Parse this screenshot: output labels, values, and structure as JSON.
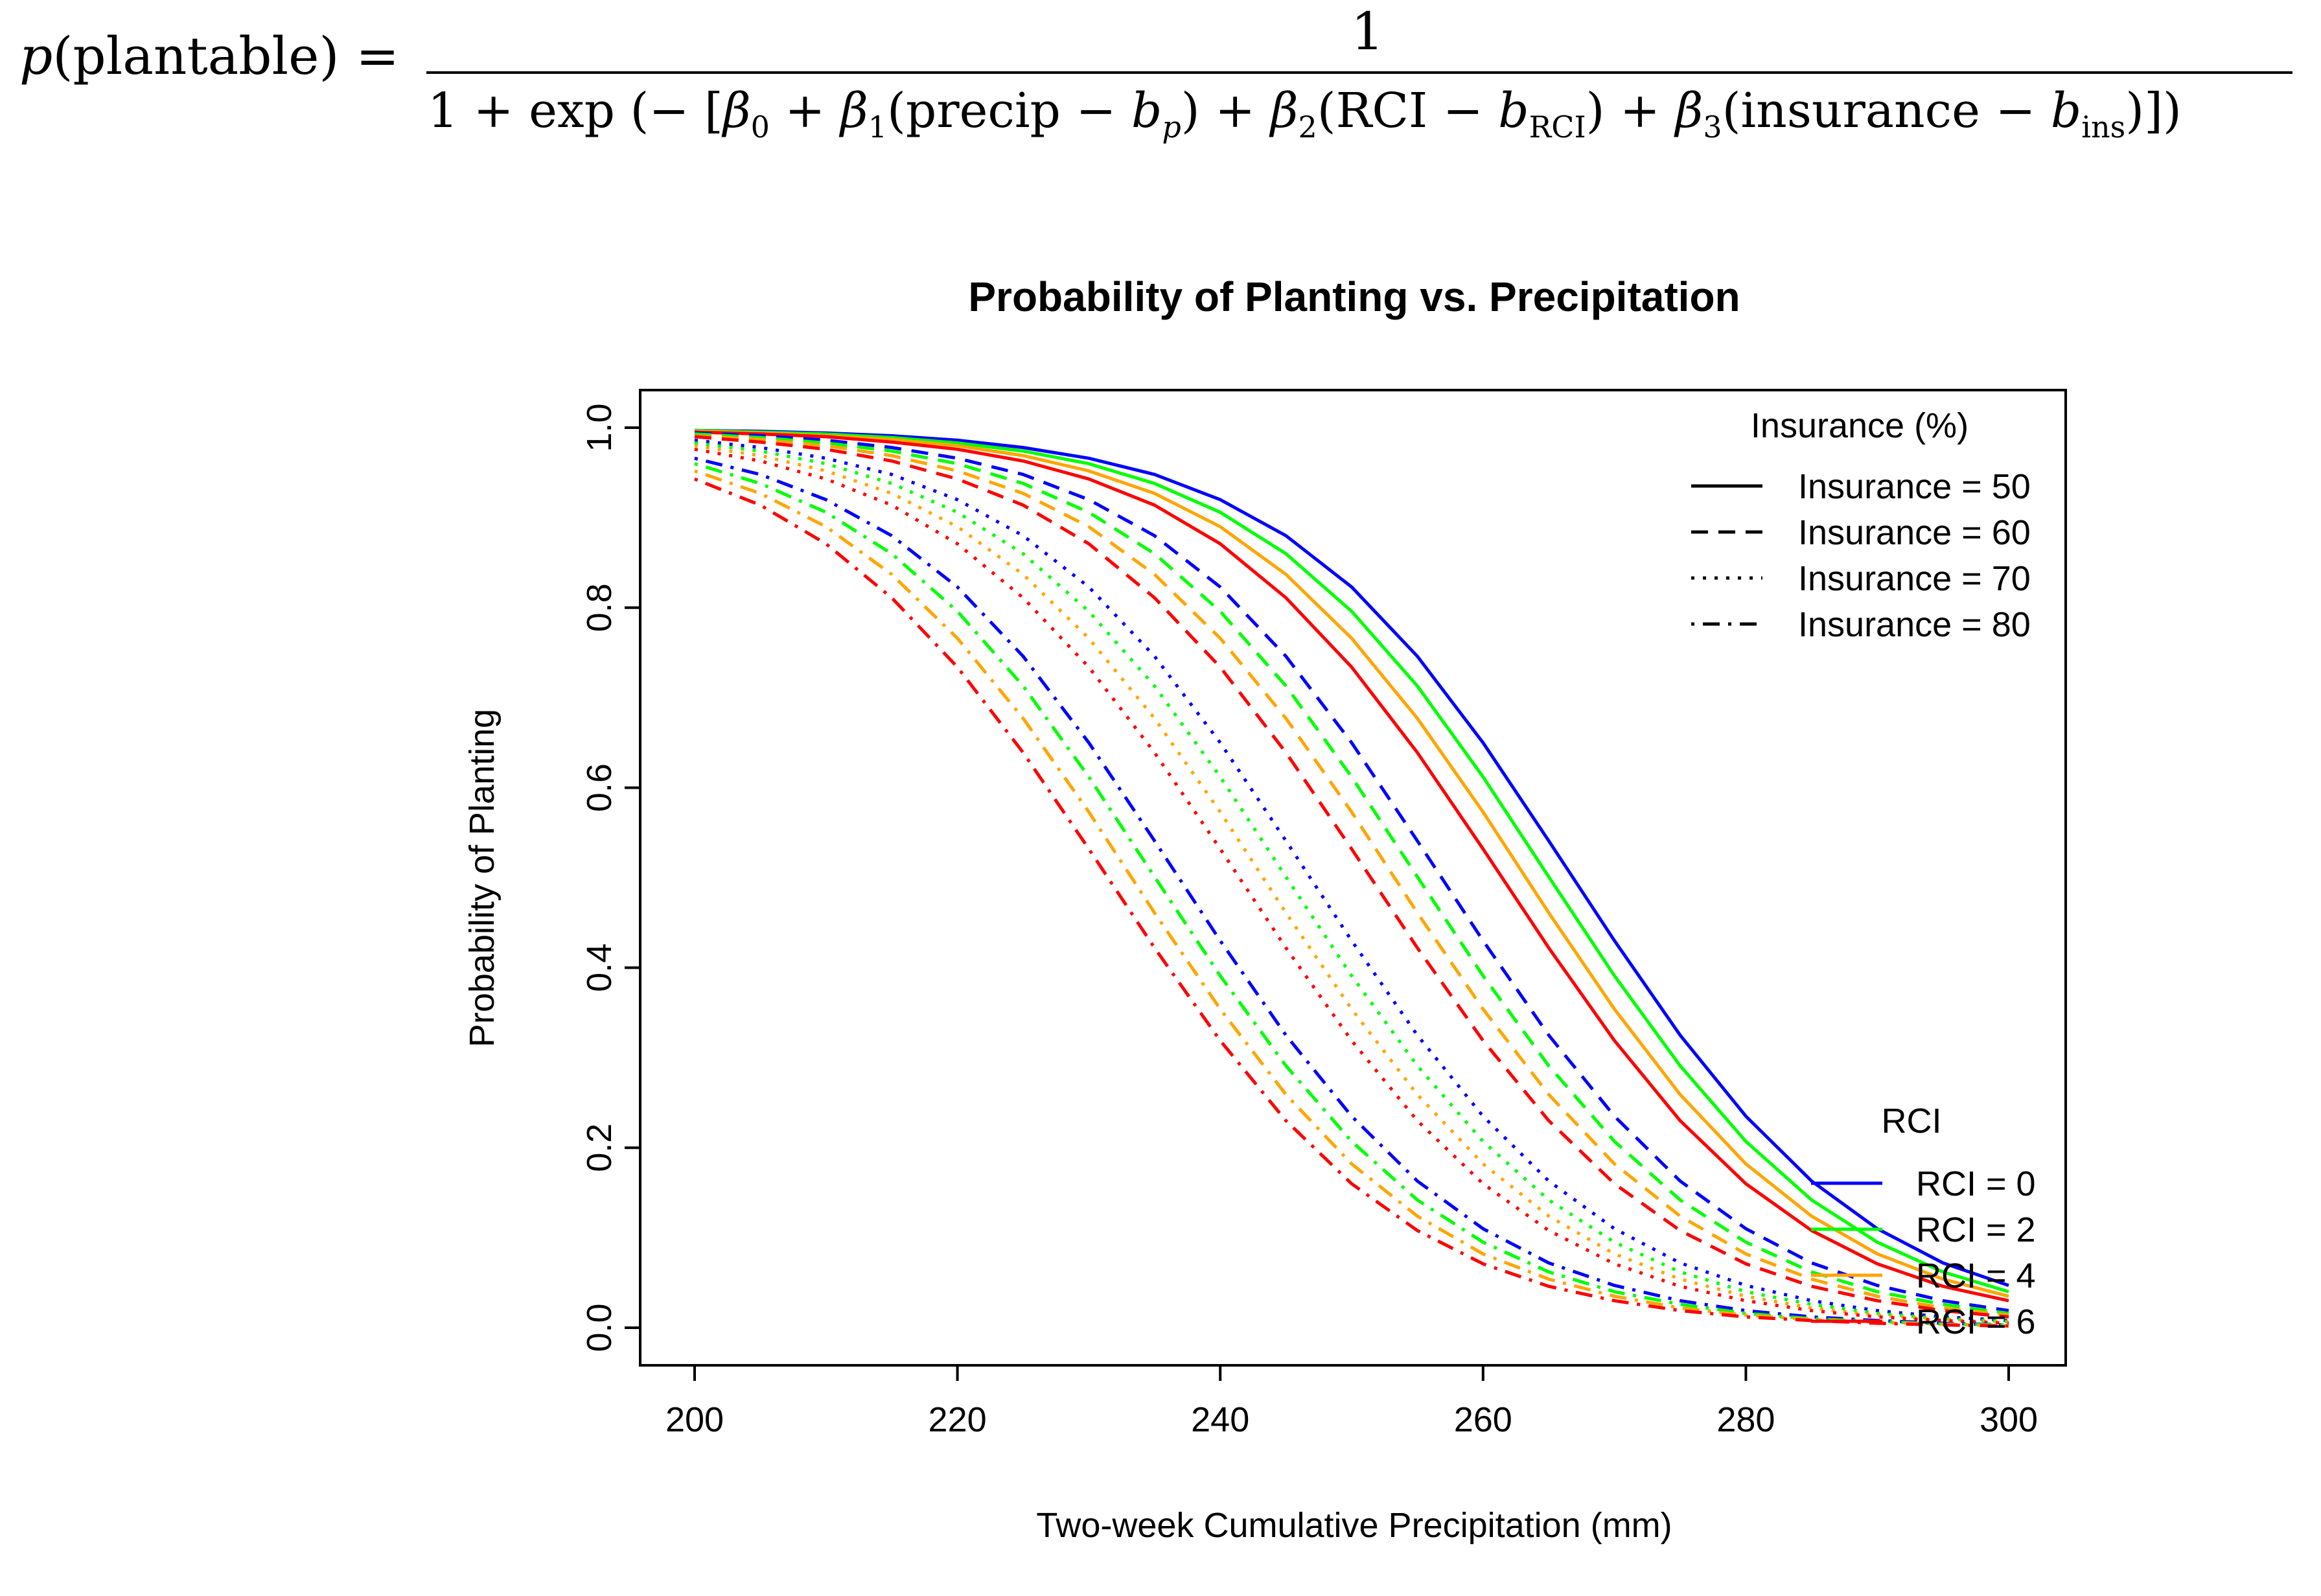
{
  "formula": {
    "lhs": "p(plantable) =",
    "numerator": "1",
    "denominator": "1 + exp (− [β0 + β1(precip − bp) + β2(RCI − bRCI) + β3(insurance − bins)])"
  },
  "chart_data": {
    "type": "line",
    "title": "Probability of Planting vs. Precipitation",
    "xlabel": "Two-week Cumulative Precipitation (mm)",
    "ylabel": "Probability of Planting",
    "xlim": [
      200,
      300
    ],
    "ylim": [
      0.0,
      1.0
    ],
    "x_ticks": [
      "200",
      "220",
      "240",
      "260",
      "280",
      "300"
    ],
    "y_ticks": [
      "0.0",
      "0.2",
      "0.4",
      "0.6",
      "0.8",
      "1.0"
    ],
    "grid": false,
    "x": [
      200,
      205,
      210,
      215,
      220,
      225,
      230,
      235,
      240,
      245,
      250,
      255,
      260,
      265,
      270,
      275,
      280,
      285,
      290,
      295,
      300
    ],
    "legend_insurance": {
      "title": "Insurance (%)",
      "position": "top-right",
      "entries": [
        {
          "label": "Insurance = 50",
          "linestyle": "solid"
        },
        {
          "label": "Insurance = 60",
          "linestyle": "dashed"
        },
        {
          "label": "Insurance = 70",
          "linestyle": "dotted"
        },
        {
          "label": "Insurance = 80",
          "linestyle": "dotdash"
        }
      ]
    },
    "legend_rci": {
      "title": "RCI",
      "position": "bottom-right",
      "entries": [
        {
          "label": "RCI = 0",
          "color": "#0000FF"
        },
        {
          "label": "RCI = 2",
          "color": "#00FF00"
        },
        {
          "label": "RCI = 4",
          "color": "#FFA500"
        },
        {
          "label": "RCI = 6",
          "color": "#FF0000"
        }
      ]
    },
    "series": [
      {
        "insurance": 50,
        "rci": 0,
        "color": "#0000FF",
        "linestyle": "solid",
        "values": [
          0.997,
          0.996,
          0.994,
          0.991,
          0.986,
          0.978,
          0.966,
          0.948,
          0.92,
          0.88,
          0.823,
          0.746,
          0.65,
          0.541,
          0.43,
          0.325,
          0.235,
          0.163,
          0.11,
          0.072,
          0.047
        ]
      },
      {
        "insurance": 50,
        "rci": 2,
        "color": "#00FF00",
        "linestyle": "solid",
        "values": [
          0.997,
          0.995,
          0.993,
          0.989,
          0.983,
          0.974,
          0.96,
          0.938,
          0.906,
          0.86,
          0.796,
          0.713,
          0.612,
          0.501,
          0.391,
          0.291,
          0.207,
          0.142,
          0.095,
          0.062,
          0.04
        ]
      },
      {
        "insurance": 50,
        "rci": 4,
        "color": "#FFA500",
        "linestyle": "solid",
        "values": [
          0.996,
          0.994,
          0.991,
          0.987,
          0.98,
          0.969,
          0.952,
          0.927,
          0.89,
          0.837,
          0.766,
          0.677,
          0.573,
          0.461,
          0.354,
          0.259,
          0.182,
          0.124,
          0.082,
          0.054,
          0.035
        ]
      },
      {
        "insurance": 50,
        "rci": 6,
        "color": "#FF0000",
        "linestyle": "solid",
        "values": [
          0.995,
          0.993,
          0.99,
          0.984,
          0.976,
          0.963,
          0.943,
          0.914,
          0.871,
          0.811,
          0.734,
          0.639,
          0.532,
          0.422,
          0.319,
          0.23,
          0.16,
          0.108,
          0.071,
          0.046,
          0.03
        ]
      },
      {
        "insurance": 60,
        "rci": 0,
        "color": "#0000FF",
        "linestyle": "dashed",
        "values": [
          0.994,
          0.991,
          0.986,
          0.978,
          0.966,
          0.948,
          0.92,
          0.88,
          0.823,
          0.746,
          0.65,
          0.541,
          0.43,
          0.325,
          0.235,
          0.163,
          0.11,
          0.072,
          0.047,
          0.03,
          0.019
        ]
      },
      {
        "insurance": 60,
        "rci": 2,
        "color": "#00FF00",
        "linestyle": "dashed",
        "values": [
          0.993,
          0.989,
          0.983,
          0.974,
          0.96,
          0.938,
          0.906,
          0.86,
          0.796,
          0.713,
          0.612,
          0.501,
          0.391,
          0.291,
          0.207,
          0.142,
          0.095,
          0.062,
          0.04,
          0.026,
          0.016
        ]
      },
      {
        "insurance": 60,
        "rci": 4,
        "color": "#FFA500",
        "linestyle": "dashed",
        "values": [
          0.991,
          0.987,
          0.98,
          0.969,
          0.952,
          0.927,
          0.89,
          0.837,
          0.766,
          0.677,
          0.573,
          0.461,
          0.354,
          0.259,
          0.182,
          0.124,
          0.082,
          0.054,
          0.035,
          0.022,
          0.014
        ]
      },
      {
        "insurance": 60,
        "rci": 6,
        "color": "#FF0000",
        "linestyle": "dashed",
        "values": [
          0.99,
          0.984,
          0.976,
          0.963,
          0.943,
          0.914,
          0.871,
          0.811,
          0.734,
          0.639,
          0.532,
          0.422,
          0.319,
          0.23,
          0.16,
          0.108,
          0.071,
          0.046,
          0.03,
          0.019,
          0.012
        ]
      },
      {
        "insurance": 70,
        "rci": 0,
        "color": "#0000FF",
        "linestyle": "dotted",
        "values": [
          0.986,
          0.978,
          0.966,
          0.948,
          0.92,
          0.88,
          0.823,
          0.746,
          0.65,
          0.541,
          0.43,
          0.325,
          0.235,
          0.163,
          0.11,
          0.072,
          0.047,
          0.03,
          0.019,
          0.012,
          0.008
        ]
      },
      {
        "insurance": 70,
        "rci": 2,
        "color": "#00FF00",
        "linestyle": "dotted",
        "values": [
          0.983,
          0.974,
          0.96,
          0.938,
          0.906,
          0.86,
          0.796,
          0.713,
          0.612,
          0.501,
          0.391,
          0.291,
          0.207,
          0.142,
          0.095,
          0.062,
          0.04,
          0.026,
          0.016,
          0.01,
          0.007
        ]
      },
      {
        "insurance": 70,
        "rci": 4,
        "color": "#FFA500",
        "linestyle": "dotted",
        "values": [
          0.98,
          0.969,
          0.952,
          0.927,
          0.89,
          0.837,
          0.766,
          0.677,
          0.573,
          0.461,
          0.354,
          0.259,
          0.182,
          0.124,
          0.082,
          0.054,
          0.035,
          0.022,
          0.014,
          0.009,
          0.006
        ]
      },
      {
        "insurance": 70,
        "rci": 6,
        "color": "#FF0000",
        "linestyle": "dotted",
        "values": [
          0.976,
          0.963,
          0.943,
          0.914,
          0.871,
          0.811,
          0.734,
          0.639,
          0.532,
          0.422,
          0.319,
          0.23,
          0.16,
          0.108,
          0.071,
          0.046,
          0.03,
          0.019,
          0.012,
          0.008,
          0.005
        ]
      },
      {
        "insurance": 80,
        "rci": 0,
        "color": "#0000FF",
        "linestyle": "dotdash",
        "values": [
          0.966,
          0.948,
          0.92,
          0.88,
          0.823,
          0.746,
          0.65,
          0.541,
          0.43,
          0.325,
          0.235,
          0.163,
          0.11,
          0.072,
          0.047,
          0.03,
          0.019,
          0.012,
          0.008,
          0.005,
          0.003
        ]
      },
      {
        "insurance": 80,
        "rci": 2,
        "color": "#00FF00",
        "linestyle": "dotdash",
        "values": [
          0.96,
          0.938,
          0.906,
          0.86,
          0.796,
          0.713,
          0.612,
          0.501,
          0.391,
          0.291,
          0.207,
          0.142,
          0.095,
          0.062,
          0.04,
          0.026,
          0.016,
          0.01,
          0.007,
          0.004,
          0.003
        ]
      },
      {
        "insurance": 80,
        "rci": 4,
        "color": "#FFA500",
        "linestyle": "dotdash",
        "values": [
          0.952,
          0.927,
          0.89,
          0.837,
          0.766,
          0.677,
          0.573,
          0.461,
          0.354,
          0.259,
          0.182,
          0.124,
          0.082,
          0.054,
          0.035,
          0.022,
          0.014,
          0.009,
          0.006,
          0.004,
          0.002
        ]
      },
      {
        "insurance": 80,
        "rci": 6,
        "color": "#FF0000",
        "linestyle": "dotdash",
        "values": [
          0.943,
          0.914,
          0.871,
          0.811,
          0.734,
          0.639,
          0.532,
          0.422,
          0.319,
          0.23,
          0.16,
          0.108,
          0.071,
          0.046,
          0.03,
          0.019,
          0.012,
          0.008,
          0.005,
          0.003,
          0.002
        ]
      }
    ]
  }
}
